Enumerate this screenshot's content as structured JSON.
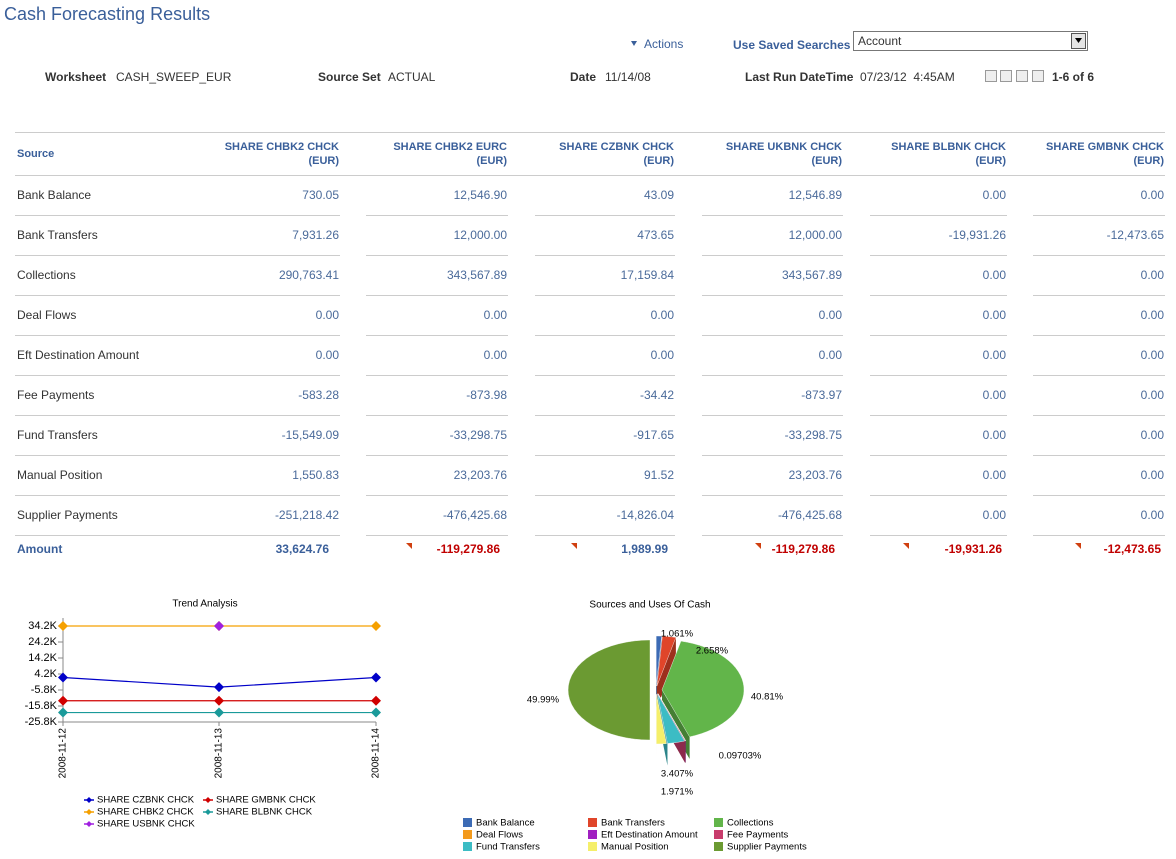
{
  "header": {
    "title": "Cash Forecasting Results",
    "actions": "Actions",
    "saved_searches": "Use Saved Searches",
    "saved_search_value": "Account",
    "fields": [
      {
        "label": "Worksheet",
        "value": "CASH_SWEEP_EUR"
      },
      {
        "label": "Source Set",
        "value": "ACTUAL"
      },
      {
        "label": "Date",
        "value": "11/14/08"
      },
      {
        "label": "Last Run DateTime",
        "value": "07/23/12  4:45AM"
      }
    ],
    "pager": "1-6 of 6"
  },
  "table": {
    "source_header": "Source",
    "columns": [
      {
        "name": "SHARE CHBK2 CHCK",
        "currency": "(EUR)"
      },
      {
        "name": "SHARE CHBK2 EURC",
        "currency": "(EUR)"
      },
      {
        "name": "SHARE CZBNK CHCK",
        "currency": "(EUR)"
      },
      {
        "name": "SHARE UKBNK CHCK",
        "currency": "(EUR)"
      },
      {
        "name": "SHARE BLBNK CHCK",
        "currency": "(EUR)"
      },
      {
        "name": "SHARE GMBNK CHCK",
        "currency": "(EUR)"
      }
    ],
    "rows": [
      [
        "Bank Balance",
        "730.05",
        "12,546.90",
        "43.09",
        "12,546.89",
        "0.00",
        "0.00"
      ],
      [
        "Bank Transfers",
        "7,931.26",
        "12,000.00",
        "473.65",
        "12,000.00",
        "-19,931.26",
        "-12,473.65"
      ],
      [
        "Collections",
        "290,763.41",
        "343,567.89",
        "17,159.84",
        "343,567.89",
        "0.00",
        "0.00"
      ],
      [
        "Deal Flows",
        "0.00",
        "0.00",
        "0.00",
        "0.00",
        "0.00",
        "0.00"
      ],
      [
        "Eft Destination Amount",
        "0.00",
        "0.00",
        "0.00",
        "0.00",
        "0.00",
        "0.00"
      ],
      [
        "Fee Payments",
        "-583.28",
        "-873.98",
        "-34.42",
        "-873.97",
        "0.00",
        "0.00"
      ],
      [
        "Fund Transfers",
        "-15,549.09",
        "-33,298.75",
        "-917.65",
        "-33,298.75",
        "0.00",
        "0.00"
      ],
      [
        "Manual Position",
        "1,550.83",
        "23,203.76",
        "91.52",
        "23,203.76",
        "0.00",
        "0.00"
      ],
      [
        "Supplier Payments",
        "-251,218.42",
        "-476,425.68",
        "-14,826.04",
        "-476,425.68",
        "0.00",
        "0.00"
      ]
    ],
    "total": [
      "Amount",
      "33,624.76",
      "-119,279.86",
      "1,989.99",
      "-119,279.86",
      "-19,931.26",
      "-12,473.65"
    ]
  },
  "chart_data": [
    {
      "type": "line",
      "title": "Trend Analysis",
      "categories": [
        "2008-11-12",
        "2008-11-13",
        "2008-11-14"
      ],
      "series": [
        {
          "name": "SHARE CZBNK CHCK",
          "color": "#0000c8",
          "values": [
            2000,
            -4000,
            2000
          ]
        },
        {
          "name": "SHARE GMBNK CHCK",
          "color": "#d00000",
          "values": [
            -12500,
            -12500,
            -12500
          ]
        },
        {
          "name": "SHARE CHBK2 CHCK",
          "color": "#f5a000",
          "values": [
            34200,
            34200,
            34200
          ]
        },
        {
          "name": "SHARE BLBNK CHCK",
          "color": "#1a9a9a",
          "values": [
            -19900,
            -19900,
            -19900
          ]
        },
        {
          "name": "SHARE USBNK CHCK",
          "color": "#a020e0",
          "values": [
            null,
            34200,
            null
          ]
        }
      ],
      "ylim": [
        -25800,
        39200
      ],
      "yticks": [
        {
          "value": 34200,
          "label": "34.2K"
        },
        {
          "value": 24200,
          "label": "24.2K"
        },
        {
          "value": 14200,
          "label": "14.2K"
        },
        {
          "value": 4200,
          "label": "4.2K"
        },
        {
          "value": -5800,
          "label": "-5.8K"
        },
        {
          "value": -15800,
          "label": "-15.8K"
        },
        {
          "value": -25800,
          "label": "-25.8K"
        }
      ],
      "legend": "bottom"
    },
    {
      "type": "pie",
      "title": "Sources and Uses Of Cash",
      "categories": [
        "Bank Balance",
        "Bank Transfers",
        "Collections",
        "Deal Flows",
        "Eft Destination Amount",
        "Fee Payments",
        "Fund Transfers",
        "Manual Position",
        "Supplier Payments"
      ],
      "values": [
        1.061,
        2.658,
        40.81,
        0,
        0,
        0.09703,
        3.407,
        1.971,
        49.99
      ],
      "value_labels": [
        "1.061%",
        "2.658%",
        "40.81%",
        null,
        null,
        "0.09703%",
        "3.407%",
        "1.971%",
        "49.99%"
      ],
      "colors": [
        "#3c6bb5",
        "#e0452a",
        "#62b54a",
        "#f39a1c",
        "#a020c0",
        "#c83c6c",
        "#3cbcc4",
        "#f5ef6a",
        "#6b9a32"
      ],
      "legend": "bottom"
    }
  ]
}
